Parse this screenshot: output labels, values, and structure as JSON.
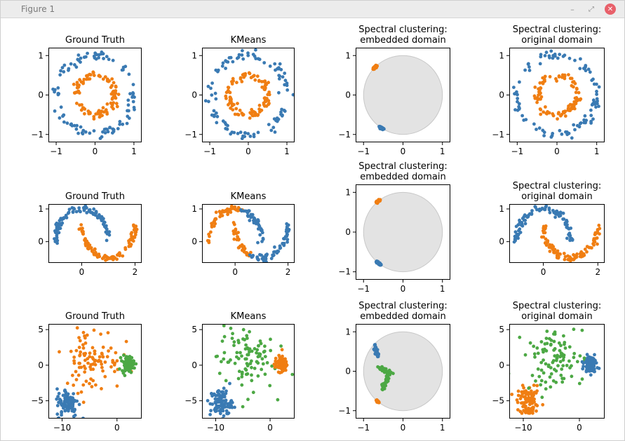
{
  "window": {
    "title": "Figure 1",
    "controls": {
      "minimize": "–",
      "maximize": "⤢",
      "close": "✕"
    }
  },
  "colors": {
    "blue": "#3a7ab3",
    "orange": "#f07e12",
    "green": "#4ca844",
    "circle_fill": "#e3e3e3",
    "circle_edge": "#c8c8c8"
  },
  "chart_data": [
    {
      "type": "scatter",
      "dataset": "circles",
      "title": "Ground Truth",
      "coloring": "truth",
      "xlim": [
        -1.2,
        1.2
      ],
      "ylim": [
        -1.2,
        1.2
      ],
      "xticks": [
        -1,
        0,
        1
      ],
      "yticks": [
        -1,
        0,
        1
      ],
      "series": [
        {
          "color": "blue",
          "shape": "ring",
          "cx": 0,
          "cy": 0,
          "radius": 1.0,
          "noise": 0.06,
          "n": 100
        },
        {
          "color": "orange",
          "shape": "ring",
          "cx": 0,
          "cy": 0,
          "radius": 0.5,
          "noise": 0.05,
          "n": 100
        }
      ]
    },
    {
      "type": "scatter",
      "dataset": "circles",
      "title": "KMeans",
      "coloring": "kmeans",
      "xlim": [
        -1.2,
        1.2
      ],
      "ylim": [
        -1.2,
        1.2
      ],
      "xticks": [
        -1,
        0,
        1
      ],
      "yticks": [
        -1,
        0,
        1
      ],
      "series": [
        {
          "color": "blue",
          "shape": "ring",
          "cx": 0,
          "cy": 0,
          "radius": 1.0,
          "noise": 0.06,
          "n": 100
        },
        {
          "color": "orange",
          "shape": "ring",
          "cx": 0,
          "cy": 0,
          "radius": 0.5,
          "noise": 0.05,
          "n": 100
        }
      ]
    },
    {
      "type": "scatter",
      "dataset": "circles",
      "title": "Spectral clustering:\nembedded domain",
      "coloring": "embedded",
      "xlim": [
        -1.2,
        1.2
      ],
      "ylim": [
        -1.2,
        1.2
      ],
      "xticks": [
        -1,
        0,
        1
      ],
      "yticks": [
        -1,
        0,
        1
      ],
      "unit_circle": true,
      "series": [
        {
          "color": "orange",
          "shape": "arc",
          "cx": 0,
          "cy": 0,
          "radius": 1.0,
          "a0": 132,
          "a1": 138,
          "noise": 0.01,
          "n": 100
        },
        {
          "color": "blue",
          "shape": "arc",
          "cx": 0,
          "cy": 0,
          "radius": 1.0,
          "a0": 234,
          "a1": 240,
          "noise": 0.01,
          "n": 100
        }
      ]
    },
    {
      "type": "scatter",
      "dataset": "circles",
      "title": "Spectral clustering:\noriginal domain",
      "coloring": "spectral",
      "xlim": [
        -1.2,
        1.2
      ],
      "ylim": [
        -1.2,
        1.2
      ],
      "xticks": [
        -1,
        0,
        1
      ],
      "yticks": [
        -1,
        0,
        1
      ],
      "series": [
        {
          "color": "blue",
          "shape": "ring",
          "cx": 0,
          "cy": 0,
          "radius": 1.0,
          "noise": 0.06,
          "n": 100
        },
        {
          "color": "orange",
          "shape": "ring",
          "cx": 0,
          "cy": 0,
          "radius": 0.5,
          "noise": 0.05,
          "n": 100
        }
      ]
    },
    {
      "type": "scatter",
      "dataset": "moons",
      "title": "Ground Truth",
      "coloring": "truth",
      "xlim": [
        -1.25,
        2.25
      ],
      "ylim": [
        -0.65,
        1.15
      ],
      "xticks": [
        0,
        2
      ],
      "yticks": [
        0,
        1
      ],
      "series": [
        {
          "color": "blue",
          "shape": "arc",
          "cx": 0,
          "cy": 0,
          "radius": 1.0,
          "a0": 0,
          "a1": 180,
          "noise": 0.05,
          "n": 100
        },
        {
          "color": "orange",
          "shape": "arc",
          "cx": 1,
          "cy": 0.5,
          "radius": 1.0,
          "a0": 180,
          "a1": 360,
          "noise": 0.05,
          "n": 100
        }
      ]
    },
    {
      "type": "scatter",
      "dataset": "moons",
      "title": "KMeans",
      "coloring": "kmeans",
      "xlim": [
        -1.25,
        2.25
      ],
      "ylim": [
        -0.65,
        1.15
      ],
      "xticks": [
        0,
        2
      ],
      "yticks": [
        0,
        1
      ],
      "series": [
        {
          "color": "orange",
          "shape": "arc",
          "cx": 0,
          "cy": 0,
          "radius": 1.0,
          "a0": 75,
          "a1": 180,
          "noise": 0.05,
          "n": 55
        },
        {
          "color": "blue",
          "shape": "arc",
          "cx": 0,
          "cy": 0,
          "radius": 1.0,
          "a0": 0,
          "a1": 75,
          "noise": 0.05,
          "n": 45
        },
        {
          "color": "orange",
          "shape": "arc",
          "cx": 1,
          "cy": 0.5,
          "radius": 1.0,
          "a0": 180,
          "a1": 245,
          "noise": 0.05,
          "n": 35
        },
        {
          "color": "blue",
          "shape": "arc",
          "cx": 1,
          "cy": 0.5,
          "radius": 1.0,
          "a0": 245,
          "a1": 360,
          "noise": 0.05,
          "n": 65
        }
      ]
    },
    {
      "type": "scatter",
      "dataset": "moons",
      "title": "Spectral clustering:\nembedded domain",
      "coloring": "embedded",
      "xlim": [
        -1.2,
        1.2
      ],
      "ylim": [
        -1.2,
        1.2
      ],
      "xticks": [
        -1,
        0,
        1
      ],
      "yticks": [
        -1,
        0,
        1
      ],
      "unit_circle": true,
      "series": [
        {
          "color": "orange",
          "shape": "arc",
          "cx": 0,
          "cy": 0,
          "radius": 1.0,
          "a0": 126,
          "a1": 132,
          "noise": 0.01,
          "n": 100
        },
        {
          "color": "blue",
          "shape": "arc",
          "cx": 0,
          "cy": 0,
          "radius": 1.0,
          "a0": 228,
          "a1": 236,
          "noise": 0.01,
          "n": 100
        }
      ]
    },
    {
      "type": "scatter",
      "dataset": "moons",
      "title": "Spectral clustering:\noriginal domain",
      "coloring": "spectral",
      "xlim": [
        -1.25,
        2.25
      ],
      "ylim": [
        -0.65,
        1.15
      ],
      "xticks": [
        0,
        2
      ],
      "yticks": [
        0,
        1
      ],
      "series": [
        {
          "color": "blue",
          "shape": "arc",
          "cx": 0,
          "cy": 0,
          "radius": 1.0,
          "a0": 0,
          "a1": 180,
          "noise": 0.05,
          "n": 100
        },
        {
          "color": "orange",
          "shape": "arc",
          "cx": 1,
          "cy": 0.5,
          "radius": 1.0,
          "a0": 180,
          "a1": 360,
          "noise": 0.05,
          "n": 100
        }
      ]
    },
    {
      "type": "scatter",
      "dataset": "blobs",
      "title": "Ground Truth",
      "coloring": "truth",
      "xlim": [
        -12.5,
        4.5
      ],
      "ylim": [
        -7.5,
        5.8
      ],
      "xticks": [
        -10,
        0
      ],
      "yticks": [
        -5,
        0,
        5
      ],
      "series": [
        {
          "color": "blue",
          "shape": "blob",
          "cx": -9,
          "cy": -5.3,
          "sx": 1.0,
          "sy": 1.0,
          "n": 100
        },
        {
          "color": "orange",
          "shape": "blob",
          "cx": -4.5,
          "cy": 1.0,
          "sx": 2.6,
          "sy": 2.3,
          "n": 100
        },
        {
          "color": "green",
          "shape": "blob",
          "cx": 2.0,
          "cy": 0.2,
          "sx": 0.55,
          "sy": 0.55,
          "n": 100
        }
      ]
    },
    {
      "type": "scatter",
      "dataset": "blobs",
      "title": "KMeans",
      "coloring": "kmeans",
      "xlim": [
        -12.5,
        4.5
      ],
      "ylim": [
        -7.5,
        5.8
      ],
      "xticks": [
        -10,
        0
      ],
      "yticks": [
        -5,
        0,
        5
      ],
      "series": [
        {
          "color": "blue",
          "shape": "blob",
          "cx": -9,
          "cy": -5.3,
          "sx": 1.0,
          "sy": 1.0,
          "n": 100
        },
        {
          "color": "green",
          "shape": "blob",
          "cx": -4.5,
          "cy": 1.0,
          "sx": 2.6,
          "sy": 2.3,
          "n": 100
        },
        {
          "color": "orange",
          "shape": "blob",
          "cx": 2.0,
          "cy": 0.2,
          "sx": 0.55,
          "sy": 0.55,
          "n": 100
        }
      ]
    },
    {
      "type": "scatter",
      "dataset": "blobs",
      "title": "Spectral clustering:\nembedded domain",
      "coloring": "embedded",
      "xlim": [
        -1.2,
        1.2
      ],
      "ylim": [
        -1.2,
        1.2
      ],
      "xticks": [
        -1,
        0,
        1
      ],
      "yticks": [
        -1,
        0,
        1
      ],
      "unit_circle": true,
      "series": [
        {
          "color": "blue",
          "shape": "line",
          "x0": -0.72,
          "y0": 0.65,
          "x1": -0.62,
          "y1": 0.35,
          "noise": 0.02,
          "n": 40
        },
        {
          "color": "green",
          "shape": "line",
          "x0": -0.62,
          "y0": 0.1,
          "x1": -0.32,
          "y1": -0.05,
          "noise": 0.025,
          "n": 40
        },
        {
          "color": "green",
          "shape": "line",
          "x0": -0.32,
          "y0": 0.0,
          "x1": -0.52,
          "y1": -0.45,
          "noise": 0.02,
          "n": 40
        },
        {
          "color": "orange",
          "shape": "arc",
          "cx": 0,
          "cy": 0,
          "radius": 1.0,
          "a0": 228,
          "a1": 232,
          "noise": 0.01,
          "n": 50
        }
      ]
    },
    {
      "type": "scatter",
      "dataset": "blobs",
      "title": "Spectral clustering:\noriginal domain",
      "coloring": "spectral",
      "xlim": [
        -12.5,
        4.5
      ],
      "ylim": [
        -7.5,
        5.8
      ],
      "xticks": [
        -10,
        0
      ],
      "yticks": [
        -5,
        0,
        5
      ],
      "series": [
        {
          "color": "orange",
          "shape": "blob",
          "cx": -9,
          "cy": -5.3,
          "sx": 1.0,
          "sy": 1.0,
          "n": 100
        },
        {
          "color": "green",
          "shape": "blob",
          "cx": -4.5,
          "cy": 1.0,
          "sx": 2.6,
          "sy": 2.3,
          "n": 100
        },
        {
          "color": "blue",
          "shape": "blob",
          "cx": 2.0,
          "cy": 0.2,
          "sx": 0.55,
          "sy": 0.55,
          "n": 100
        }
      ]
    }
  ]
}
